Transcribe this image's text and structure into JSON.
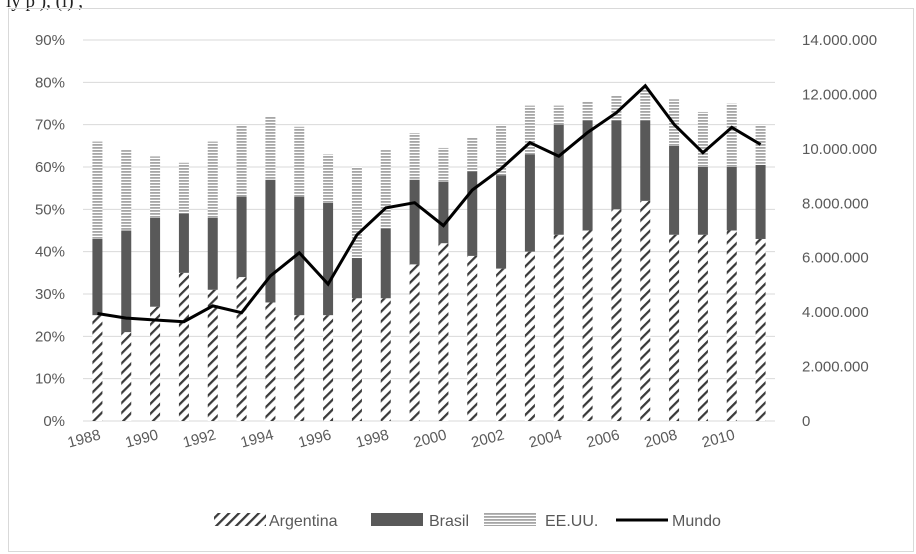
{
  "caption": "ly p                                          ), (i)                   , ",
  "chart_data": {
    "type": "bar",
    "stacked": true,
    "title": "",
    "xlabel": "",
    "ylabel": "",
    "categories": [
      "1988",
      "1989",
      "1990",
      "1991",
      "1992",
      "1993",
      "1994",
      "1995",
      "1996",
      "1997",
      "1998",
      "1999",
      "2000",
      "2001",
      "2002",
      "2003",
      "2004",
      "2005",
      "2006",
      "2007",
      "2008",
      "2009",
      "2010",
      "2011"
    ],
    "x_tick_labels": [
      "1988",
      "1990",
      "1992",
      "1994",
      "1996",
      "1998",
      "2000",
      "2002",
      "2004",
      "2006",
      "2008",
      "2010"
    ],
    "series": [
      {
        "name": "Argentina",
        "axis": "left",
        "pattern": "diagonal-hatch",
        "color": "#3a3a3a",
        "values": [
          0.25,
          0.21,
          0.27,
          0.35,
          0.31,
          0.34,
          0.28,
          0.25,
          0.25,
          0.29,
          0.29,
          0.37,
          0.42,
          0.39,
          0.36,
          0.4,
          0.44,
          0.45,
          0.5,
          0.52,
          0.44,
          0.44,
          0.45,
          0.43
        ]
      },
      {
        "name": "Brasil",
        "axis": "left",
        "pattern": "solid",
        "color": "#595959",
        "values": [
          0.18,
          0.24,
          0.21,
          0.14,
          0.17,
          0.19,
          0.29,
          0.28,
          0.265,
          0.095,
          0.165,
          0.2,
          0.145,
          0.2,
          0.22,
          0.23,
          0.26,
          0.26,
          0.21,
          0.19,
          0.21,
          0.16,
          0.15,
          0.175
        ]
      },
      {
        "name": "EE.UU.",
        "axis": "left",
        "pattern": "horizontal-lines",
        "color": "#a6a6a6",
        "values": [
          0.23,
          0.19,
          0.145,
          0.12,
          0.18,
          0.17,
          0.15,
          0.165,
          0.115,
          0.215,
          0.185,
          0.11,
          0.08,
          0.08,
          0.12,
          0.115,
          0.045,
          0.045,
          0.06,
          0.075,
          0.11,
          0.13,
          0.15,
          0.095
        ]
      },
      {
        "name": "Mundo",
        "axis": "right",
        "type": "line",
        "color": "#000000",
        "values": [
          3950000,
          3780000,
          3710000,
          3650000,
          4230000,
          3980000,
          5330000,
          6180000,
          5030000,
          6840000,
          7830000,
          8020000,
          7180000,
          8490000,
          9270000,
          10230000,
          9730000,
          10600000,
          11330000,
          12320000,
          10900000,
          9860000,
          10790000,
          10160000
        ]
      }
    ],
    "ylim_left": [
      0,
      0.9
    ],
    "ylim_right": [
      0,
      14000000
    ],
    "y_left_ticks": [
      "0%",
      "10%",
      "20%",
      "30%",
      "40%",
      "50%",
      "60%",
      "70%",
      "80%",
      "90%"
    ],
    "y_right_ticks": [
      "0",
      "2.000.000",
      "4.000.000",
      "6.000.000",
      "8.000.000",
      "10.000.000",
      "12.000.000",
      "14.000.000"
    ],
    "grid": true,
    "legend": {
      "position": "bottom",
      "entries": [
        "Argentina",
        "Brasil",
        "EE.UU.",
        "Mundo"
      ]
    }
  }
}
